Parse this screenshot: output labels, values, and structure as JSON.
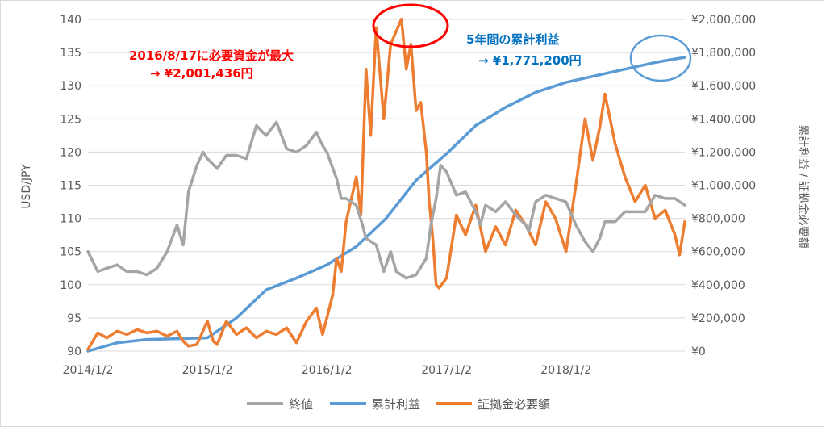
{
  "chart_data": {
    "type": "line",
    "title": "",
    "xlabel": "",
    "ylabel_left": "USD/JPY",
    "ylabel_right": "累計利益 / 証拠金必要額",
    "x_ticks": [
      "2014/1/2",
      "2015/1/2",
      "2016/1/2",
      "2017/1/2",
      "2018/1/2"
    ],
    "x_range": [
      "2014/1/2",
      "2018/12/31"
    ],
    "y_left_range": [
      90,
      140
    ],
    "y_left_ticks": [
      "90",
      "95",
      "100",
      "105",
      "110",
      "115",
      "120",
      "125",
      "130",
      "135",
      "140"
    ],
    "y_right_range": [
      0,
      2000000
    ],
    "y_right_ticks": [
      "¥0",
      "¥200,000",
      "¥400,000",
      "¥600,000",
      "¥800,000",
      "¥1,000,000",
      "¥1,200,000",
      "¥1,400,000",
      "¥1,600,000",
      "¥1,800,000",
      "¥2,000,000"
    ],
    "grid": true,
    "legend_position": "bottom",
    "series": [
      {
        "name": "終値",
        "axis": "left",
        "color": "#a5a5a5",
        "points": [
          [
            "2014/1/2",
            105
          ],
          [
            "2014/2/1",
            102
          ],
          [
            "2014/3/1",
            102.5
          ],
          [
            "2014/4/1",
            103
          ],
          [
            "2014/5/1",
            102
          ],
          [
            "2014/6/1",
            102
          ],
          [
            "2014/7/1",
            101.5
          ],
          [
            "2014/8/1",
            102.5
          ],
          [
            "2014/9/1",
            105
          ],
          [
            "2014/10/1",
            109
          ],
          [
            "2014/10/20",
            106
          ],
          [
            "2014/11/5",
            114
          ],
          [
            "2014/12/1",
            118
          ],
          [
            "2014/12/20",
            120
          ],
          [
            "2015/1/2",
            119
          ],
          [
            "2015/2/1",
            117.5
          ],
          [
            "2015/3/1",
            119.5
          ],
          [
            "2015/4/1",
            119.5
          ],
          [
            "2015/5/1",
            119
          ],
          [
            "2015/6/1",
            124
          ],
          [
            "2015/6/20",
            123
          ],
          [
            "2015/7/1",
            122.5
          ],
          [
            "2015/8/1",
            124.5
          ],
          [
            "2015/9/1",
            120.5
          ],
          [
            "2015/10/1",
            120
          ],
          [
            "2015/11/1",
            121
          ],
          [
            "2015/12/1",
            123
          ],
          [
            "2015/12/20",
            121
          ],
          [
            "2016/1/2",
            120
          ],
          [
            "2016/2/1",
            116
          ],
          [
            "2016/2/15",
            113
          ],
          [
            "2016/3/1",
            113
          ],
          [
            "2016/4/1",
            112
          ],
          [
            "2016/4/20",
            109
          ],
          [
            "2016/5/1",
            107
          ],
          [
            "2016/6/1",
            106
          ],
          [
            "2016/6/24",
            102
          ],
          [
            "2016/7/15",
            105
          ],
          [
            "2016/8/1",
            102
          ],
          [
            "2016/9/1",
            101
          ],
          [
            "2016/10/1",
            101.5
          ],
          [
            "2016/11/1",
            104
          ],
          [
            "2016/11/15",
            109
          ],
          [
            "2016/12/1",
            113
          ],
          [
            "2016/12/15",
            118
          ],
          [
            "2017/1/2",
            117
          ],
          [
            "2017/2/1",
            113.5
          ],
          [
            "2017/3/1",
            114
          ],
          [
            "2017/4/1",
            111
          ],
          [
            "2017/4/15",
            109
          ],
          [
            "2017/5/1",
            112
          ],
          [
            "2017/6/1",
            111
          ],
          [
            "2017/7/1",
            112.5
          ],
          [
            "2017/8/1",
            110.5
          ],
          [
            "2017/9/1",
            109
          ],
          [
            "2017/9/10",
            108
          ],
          [
            "2017/10/1",
            112.5
          ],
          [
            "2017/11/1",
            113.5
          ],
          [
            "2017/12/1",
            113
          ],
          [
            "2018/1/2",
            112.5
          ],
          [
            "2018/2/1",
            109
          ],
          [
            "2018/3/1",
            106.5
          ],
          [
            "2018/3/25",
            105
          ],
          [
            "2018/4/15",
            107
          ],
          [
            "2018/5/1",
            109.5
          ],
          [
            "2018/6/1",
            109.5
          ],
          [
            "2018/7/1",
            111
          ],
          [
            "2018/8/1",
            111
          ],
          [
            "2018/9/1",
            111
          ],
          [
            "2018/10/1",
            113.5
          ],
          [
            "2018/11/1",
            113
          ],
          [
            "2018/12/1",
            113
          ],
          [
            "2018/12/31",
            112
          ]
        ]
      },
      {
        "name": "累計利益",
        "axis": "right",
        "color": "#5b9bd5",
        "points": [
          [
            "2014/1/2",
            0
          ],
          [
            "2014/4/1",
            50000
          ],
          [
            "2014/7/1",
            70000
          ],
          [
            "2014/10/1",
            75000
          ],
          [
            "2015/1/2",
            80000
          ],
          [
            "2015/4/1",
            200000
          ],
          [
            "2015/7/1",
            370000
          ],
          [
            "2015/10/1",
            440000
          ],
          [
            "2016/1/2",
            520000
          ],
          [
            "2016/4/1",
            630000
          ],
          [
            "2016/7/1",
            800000
          ],
          [
            "2016/10/1",
            1030000
          ],
          [
            "2017/1/2",
            1190000
          ],
          [
            "2017/4/1",
            1360000
          ],
          [
            "2017/7/1",
            1470000
          ],
          [
            "2017/10/1",
            1560000
          ],
          [
            "2018/1/2",
            1620000
          ],
          [
            "2018/4/1",
            1660000
          ],
          [
            "2018/7/1",
            1700000
          ],
          [
            "2018/10/1",
            1740000
          ],
          [
            "2018/12/31",
            1771200
          ]
        ]
      },
      {
        "name": "証拠金必要額",
        "axis": "right",
        "color": "#ed7d31",
        "points": [
          [
            "2014/1/2",
            10000
          ],
          [
            "2014/2/1",
            110000
          ],
          [
            "2014/3/1",
            80000
          ],
          [
            "2014/4/1",
            120000
          ],
          [
            "2014/5/1",
            100000
          ],
          [
            "2014/6/1",
            130000
          ],
          [
            "2014/7/1",
            110000
          ],
          [
            "2014/8/1",
            120000
          ],
          [
            "2014/9/1",
            90000
          ],
          [
            "2014/10/1",
            120000
          ],
          [
            "2014/10/20",
            60000
          ],
          [
            "2014/11/5",
            30000
          ],
          [
            "2014/12/1",
            40000
          ],
          [
            "2015/1/2",
            180000
          ],
          [
            "2015/1/20",
            60000
          ],
          [
            "2015/2/1",
            40000
          ],
          [
            "2015/3/1",
            180000
          ],
          [
            "2015/4/1",
            100000
          ],
          [
            "2015/5/1",
            140000
          ],
          [
            "2015/6/1",
            80000
          ],
          [
            "2015/7/1",
            120000
          ],
          [
            "2015/8/1",
            100000
          ],
          [
            "2015/9/1",
            140000
          ],
          [
            "2015/10/1",
            50000
          ],
          [
            "2015/11/1",
            180000
          ],
          [
            "2015/12/1",
            260000
          ],
          [
            "2015/12/20",
            100000
          ],
          [
            "2016/1/2",
            200000
          ],
          [
            "2016/1/20",
            340000
          ],
          [
            "2016/2/1",
            560000
          ],
          [
            "2016/2/15",
            480000
          ],
          [
            "2016/3/1",
            780000
          ],
          [
            "2016/4/1",
            1050000
          ],
          [
            "2016/4/15",
            820000
          ],
          [
            "2016/5/1",
            1700000
          ],
          [
            "2016/5/15",
            1300000
          ],
          [
            "2016/6/1",
            1950000
          ],
          [
            "2016/6/24",
            1400000
          ],
          [
            "2016/7/15",
            1850000
          ],
          [
            "2016/8/17",
            2001436
          ],
          [
            "2016/9/1",
            1700000
          ],
          [
            "2016/9/15",
            1850000
          ],
          [
            "2016/10/1",
            1450000
          ],
          [
            "2016/10/15",
            1500000
          ],
          [
            "2016/11/1",
            1200000
          ],
          [
            "2016/11/10",
            900000
          ],
          [
            "2016/11/20",
            700000
          ],
          [
            "2016/12/1",
            400000
          ],
          [
            "2016/12/10",
            380000
          ],
          [
            "2017/1/2",
            440000
          ],
          [
            "2017/2/1",
            820000
          ],
          [
            "2017/3/1",
            700000
          ],
          [
            "2017/4/1",
            880000
          ],
          [
            "2017/5/1",
            600000
          ],
          [
            "2017/6/1",
            750000
          ],
          [
            "2017/7/1",
            640000
          ],
          [
            "2017/8/1",
            850000
          ],
          [
            "2017/9/1",
            760000
          ],
          [
            "2017/10/1",
            640000
          ],
          [
            "2017/11/1",
            900000
          ],
          [
            "2017/12/1",
            800000
          ],
          [
            "2018/1/2",
            600000
          ],
          [
            "2018/2/1",
            1000000
          ],
          [
            "2018/3/1",
            1400000
          ],
          [
            "2018/3/25",
            1150000
          ],
          [
            "2018/4/15",
            1350000
          ],
          [
            "2018/5/1",
            1550000
          ],
          [
            "2018/6/1",
            1250000
          ],
          [
            "2018/7/1",
            1050000
          ],
          [
            "2018/8/1",
            900000
          ],
          [
            "2018/9/1",
            1000000
          ],
          [
            "2018/10/1",
            800000
          ],
          [
            "2018/11/1",
            850000
          ],
          [
            "2018/12/1",
            700000
          ],
          [
            "2018/12/15",
            580000
          ],
          [
            "2018/12/31",
            780000
          ]
        ]
      }
    ],
    "annotations": [
      {
        "text_lines": [
          "2016/8/17に必要資金が最大",
          "→ ¥2,001,436円"
        ],
        "color": "#ff0000",
        "target_series": "証拠金必要額"
      },
      {
        "text_lines": [
          "5年間の累計利益",
          "→ ¥1,771,200円"
        ],
        "color": "#0070c0",
        "target_series": "累計利益"
      }
    ],
    "highlight_circles": [
      {
        "color": "#ff0000",
        "target": "peak of 証拠金必要額"
      },
      {
        "color": "#5b9bd5",
        "target": "end of 累計利益"
      }
    ]
  }
}
